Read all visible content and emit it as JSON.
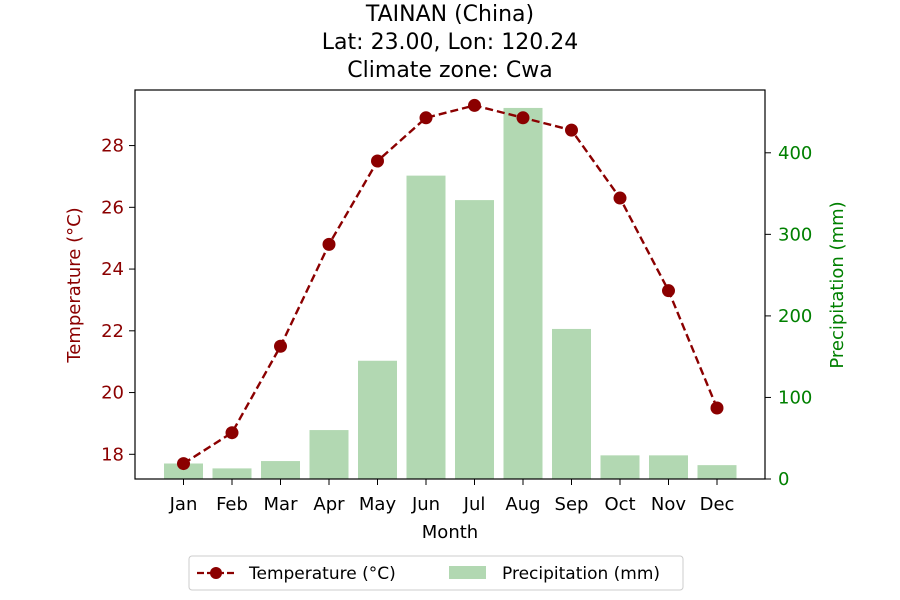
{
  "chart_data": {
    "type": "bar+line",
    "title_lines": [
      "TAINAN (China)",
      "Lat: 23.00, Lon: 120.24",
      "Climate zone: Cwa"
    ],
    "xlabel": "Month",
    "categories": [
      "Jan",
      "Feb",
      "Mar",
      "Apr",
      "May",
      "Jun",
      "Jul",
      "Aug",
      "Sep",
      "Oct",
      "Nov",
      "Dec"
    ],
    "temperature": {
      "name": "Temperature (°C)",
      "axis_label": "Temperature (°C)",
      "values": [
        17.7,
        18.7,
        21.5,
        24.8,
        27.5,
        28.9,
        29.3,
        28.9,
        28.5,
        26.3,
        23.3,
        19.5
      ],
      "ylim": [
        17.2,
        29.8
      ],
      "ticks": [
        18,
        20,
        22,
        24,
        26,
        28
      ],
      "color": "#8b0000"
    },
    "precipitation": {
      "name": "Precipitation (mm)",
      "axis_label": "Precipitation (mm)",
      "values": [
        19,
        13,
        22,
        60,
        145,
        372,
        342,
        455,
        184,
        29,
        29,
        17
      ],
      "ylim": [
        0,
        477
      ],
      "ticks": [
        0,
        100,
        200,
        300,
        400
      ],
      "color": "#b2d8b2",
      "axis_color": "#008000"
    },
    "legend_position": "bottom-center"
  }
}
